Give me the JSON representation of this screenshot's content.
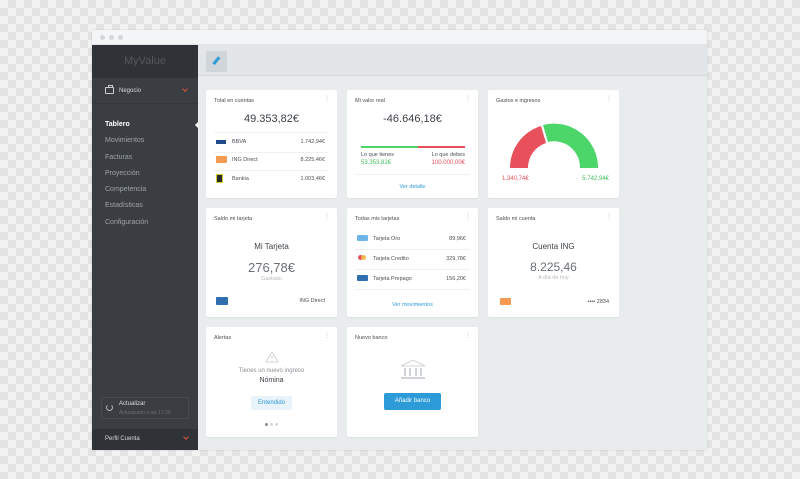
{
  "app": {
    "name": "MyValue"
  },
  "sidebar": {
    "context": {
      "label": "Negocio"
    },
    "menu": [
      {
        "label": "Tablero",
        "active": true
      },
      {
        "label": "Movimientos"
      },
      {
        "label": "Facturas"
      },
      {
        "label": "Proyección"
      },
      {
        "label": "Competencia"
      },
      {
        "label": "Estadísticas"
      },
      {
        "label": "Configuración"
      }
    ],
    "update": {
      "label": "Actualizar",
      "sub": "Actualizado a las 17:30"
    },
    "profile": {
      "label": "Perfil Cuenta"
    }
  },
  "cards": {
    "total": {
      "title": "Total en cuentas",
      "amount": "49.353,82€",
      "rows": [
        {
          "label": "BBVA",
          "value": "1.742,94€",
          "icon": "bbva-logo"
        },
        {
          "label": "ING Direct",
          "value": "8.225,46€",
          "icon": "ing-logo"
        },
        {
          "label": "Bankia",
          "value": "1.003,46€",
          "icon": "bankia-logo"
        }
      ]
    },
    "real": {
      "title": "Mi valor real",
      "amount": "-46.646,18€",
      "have_label": "Lo que tienes",
      "have_value": "53.353,82€",
      "owe_label": "Lo que debes",
      "owe_value": "100.000,00€",
      "link": "Ver detalle"
    },
    "gauge": {
      "title": "Gastos e ingresos",
      "expenses": "1.340,74€",
      "income": "5.742,94€"
    },
    "mycard": {
      "title": "Saldo mi tarjeta",
      "name": "Mi Tarjeta",
      "amount": "276,78€",
      "sub": "Gastado",
      "bank": "ING Direct"
    },
    "cards": {
      "title": "Todas mis tarjetas",
      "rows": [
        {
          "label": "Tarjeta Oro",
          "value": "89,96€"
        },
        {
          "label": "Tarjeta Credito",
          "value": "329,78€"
        },
        {
          "label": "Tarjeta Prepago",
          "value": "156,20€"
        }
      ],
      "link": "Ver movimientos"
    },
    "account": {
      "title": "Saldo mi cuenta",
      "name": "Cuenta ING",
      "amount": "8.225,46",
      "sub": "A día de hoy",
      "masked": "•••• 2834"
    },
    "alerts": {
      "title": "Alertas",
      "message": "Tienes un nuevo ingreso",
      "subject": "Nómina",
      "button": "Entendido"
    },
    "newbank": {
      "title": "Nuevo banco",
      "button": "Añadir banco"
    }
  },
  "colors": {
    "accent": "#2d9bd8",
    "positive": "#4cd66a",
    "negative": "#e8505b",
    "sidebar": "#3a3d42"
  }
}
